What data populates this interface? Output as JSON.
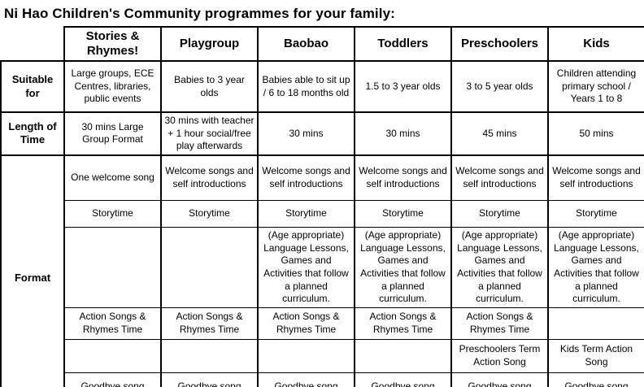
{
  "title": "Ni Hao Children's Community programmes for your family:",
  "table": {
    "columns": [
      "Stories & Rhymes!",
      "Playgroup",
      "Baobao",
      "Toddlers",
      "Preschoolers",
      "Kids"
    ],
    "row_labels": {
      "suitable_for": "Suitable for",
      "length_of_time": "Length of Time",
      "format": "Format"
    },
    "suitable_for": [
      "Large groups, ECE Centres, libraries, public events",
      "Babies to 3 year olds",
      "Babies able to sit up / 6 to 18 months old",
      "1.5 to 3 year olds",
      "3 to 5 year olds",
      "Children attending primary school / Years 1 to 8"
    ],
    "length_of_time": [
      "30 mins Large Group Format",
      "30 mins with teacher + 1 hour social/free play afterwards",
      "30 mins",
      "30 mins",
      "45 mins",
      "50 mins"
    ],
    "format_rows": [
      {
        "name": "welcome",
        "cells": [
          "One welcome song",
          "Welcome songs and self introductions",
          "Welcome songs and self introductions",
          "Welcome songs and self introductions",
          "Welcome songs and self introductions",
          "Welcome songs and self introductions"
        ]
      },
      {
        "name": "storytime",
        "cells": [
          "Storytime",
          "Storytime",
          "Storytime",
          "Storytime",
          "Storytime",
          "Storytime"
        ]
      },
      {
        "name": "language-lessons",
        "cells": [
          "",
          "",
          "(Age appropriate) Language Lessons, Games and Activities that follow a planned curriculum.",
          "(Age appropriate) Language Lessons, Games and Activities that follow a planned curriculum.",
          "(Age appropriate) Language Lessons, Games and Activities that follow a planned curriculum.",
          "(Age appropriate) Language Lessons, Games and Activities that follow a planned curriculum."
        ]
      },
      {
        "name": "action-songs",
        "cells": [
          "Action Songs & Rhymes Time",
          "Action Songs & Rhymes Time",
          "Action Songs & Rhymes Time",
          "Action Songs & Rhymes Time",
          "Action Songs & Rhymes Time",
          ""
        ]
      },
      {
        "name": "term-action-song",
        "cells": [
          "",
          "",
          "",
          "",
          "Preschoolers Term Action Song",
          "Kids Term Action Song"
        ]
      },
      {
        "name": "goodbye",
        "cells": [
          "Goodbye song",
          "Goodbye song",
          "Goodbye song",
          "Goodbye song",
          "Goodbye song",
          "Goodbye song"
        ]
      }
    ]
  }
}
